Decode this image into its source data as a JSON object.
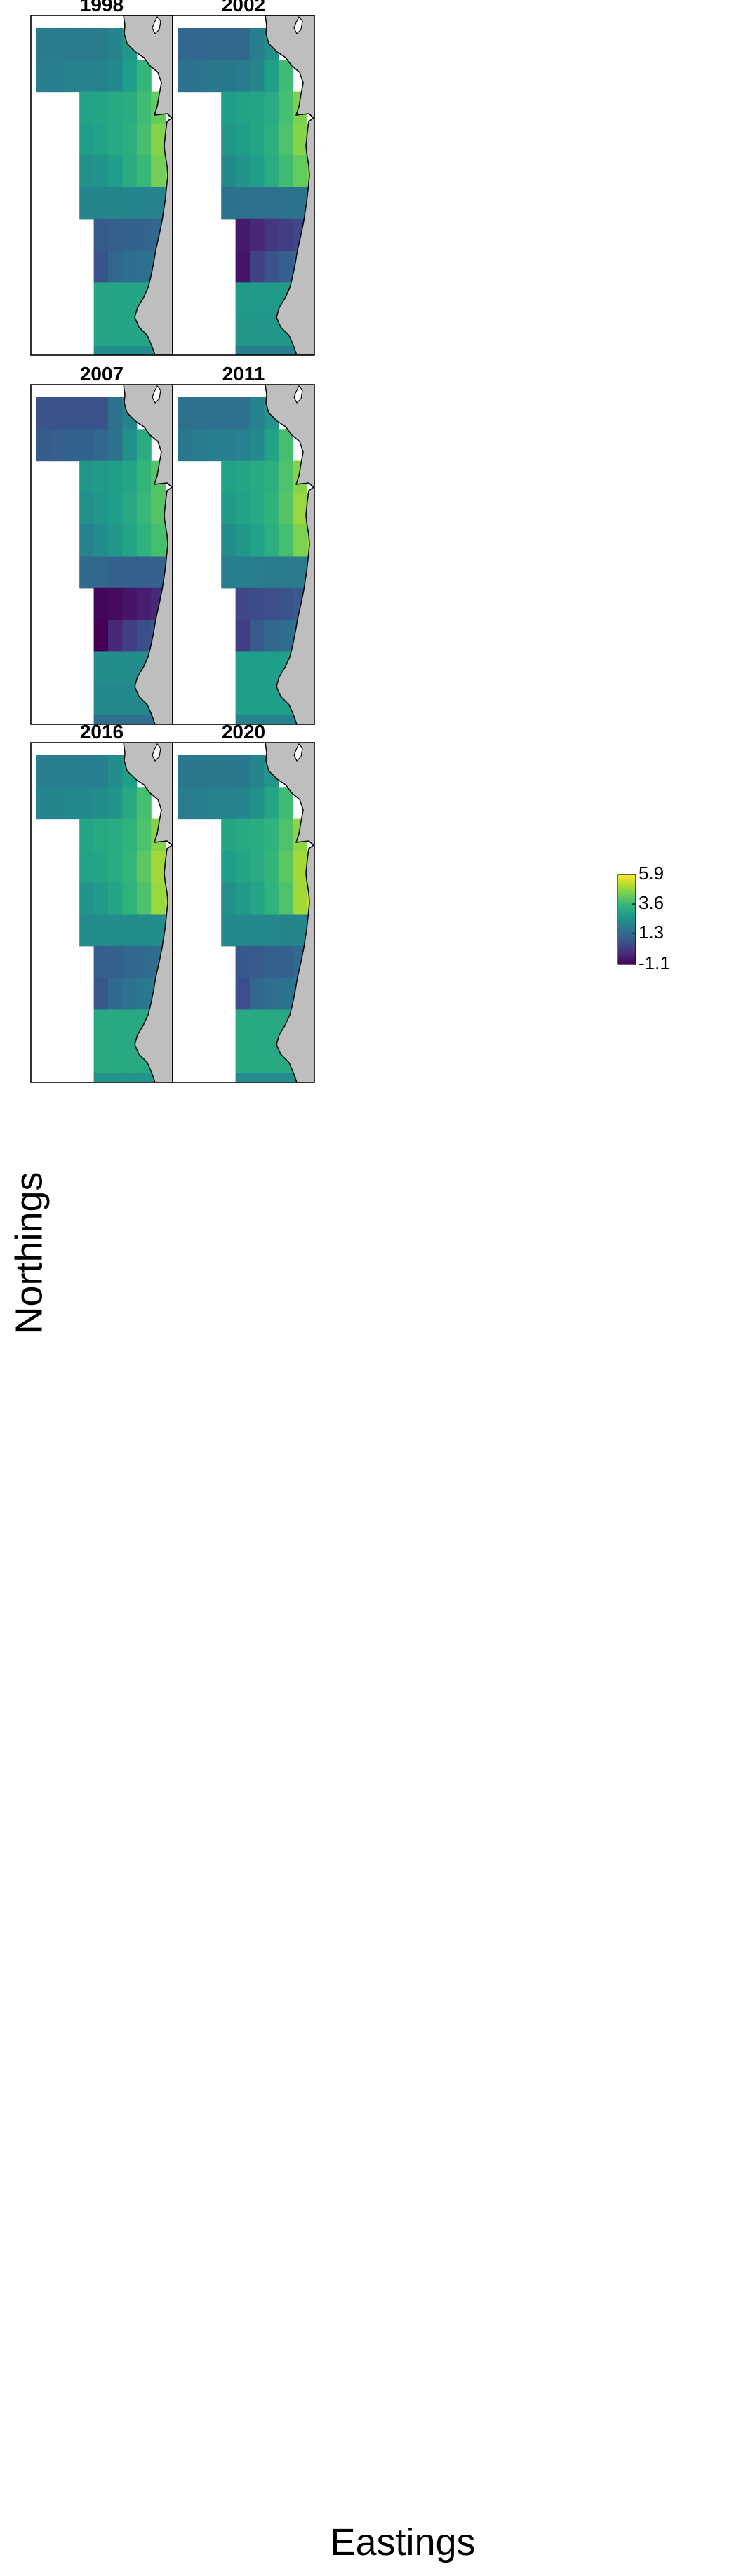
{
  "chart_data": {
    "type": "heatmap",
    "xlabel": "Eastings",
    "ylabel": "Northings",
    "colormap": "viridis",
    "colors": {
      "land": "#bebebe",
      "coast": "#000000",
      "panel_border": "#000000",
      "viridis": [
        "#440154",
        "#482878",
        "#3e4989",
        "#31688e",
        "#26828e",
        "#1f9e89",
        "#35b779",
        "#6ece58",
        "#b5de2b",
        "#fde725"
      ]
    },
    "legend": {
      "placement": "inside bottom-right panel",
      "ticks": [
        5.9,
        3.6,
        1.3,
        -1.1
      ],
      "tick_labels": [
        "5.9",
        "3.6",
        "1.3",
        "-1.1"
      ],
      "range": [
        -1.1,
        5.9
      ]
    },
    "panels": [
      {
        "title": "1998",
        "grid": [
          [
            1.8,
            1.8,
            1.8,
            1.8,
            1.8,
            2.1,
            2.6,
            null,
            null,
            null,
            null
          ],
          [
            1.9,
            1.9,
            2.0,
            2.0,
            2.0,
            2.2,
            2.8,
            3.5,
            null,
            null,
            null
          ],
          [
            null,
            null,
            null,
            2.9,
            3.0,
            3.1,
            3.2,
            3.7,
            4.2,
            null,
            null
          ],
          [
            null,
            null,
            null,
            2.8,
            2.9,
            3.1,
            3.3,
            3.8,
            4.6,
            5.0,
            null
          ],
          [
            null,
            null,
            null,
            2.4,
            2.5,
            2.8,
            3.2,
            3.6,
            4.4,
            4.9,
            5.1
          ],
          [
            null,
            null,
            null,
            2.1,
            2.1,
            2.1,
            2.1,
            2.0,
            2.0,
            2.0,
            2.1
          ],
          [
            null,
            null,
            null,
            null,
            0.9,
            1.0,
            1.1,
            1.1,
            1.2,
            1.4,
            null
          ],
          [
            null,
            null,
            null,
            null,
            0.7,
            1.2,
            1.4,
            1.5,
            1.7,
            1.8,
            null
          ],
          [
            null,
            null,
            null,
            null,
            3.0,
            3.0,
            3.0,
            3.0,
            3.0,
            2.9,
            null
          ],
          [
            null,
            null,
            null,
            null,
            3.0,
            3.0,
            3.0,
            3.0,
            2.9,
            null,
            null
          ],
          [
            null,
            null,
            null,
            null,
            2.3,
            2.3,
            2.3,
            2.3,
            2.3,
            null,
            null
          ]
        ]
      },
      {
        "title": "2002",
        "grid": [
          [
            1.2,
            1.2,
            1.2,
            1.2,
            1.2,
            1.9,
            2.4,
            null,
            null,
            null,
            null
          ],
          [
            1.5,
            1.6,
            1.7,
            1.7,
            1.8,
            2.1,
            2.8,
            3.7,
            null,
            null,
            null
          ],
          [
            null,
            null,
            null,
            2.8,
            2.9,
            3.0,
            3.2,
            3.8,
            4.5,
            null,
            null
          ],
          [
            null,
            null,
            null,
            2.6,
            2.8,
            3.0,
            3.3,
            3.9,
            4.6,
            4.9,
            null
          ],
          [
            null,
            null,
            null,
            2.2,
            2.5,
            2.8,
            3.2,
            3.7,
            4.2,
            4.5,
            4.6
          ],
          [
            null,
            null,
            null,
            1.6,
            1.5,
            1.5,
            1.5,
            1.5,
            1.6,
            1.7,
            1.8
          ],
          [
            null,
            null,
            null,
            null,
            -0.6,
            -0.3,
            0.0,
            0.2,
            0.4,
            0.7,
            null
          ],
          [
            null,
            null,
            null,
            null,
            -0.7,
            0.3,
            0.7,
            1.0,
            1.3,
            1.5,
            null
          ],
          [
            null,
            null,
            null,
            null,
            2.7,
            2.7,
            2.7,
            2.7,
            2.7,
            2.6,
            null
          ],
          [
            null,
            null,
            null,
            null,
            2.6,
            2.6,
            2.6,
            2.6,
            2.6,
            null,
            null
          ],
          [
            null,
            null,
            null,
            null,
            1.9,
            1.9,
            1.9,
            1.9,
            1.9,
            null,
            null
          ]
        ]
      },
      {
        "title": "2007",
        "grid": [
          [
            0.7,
            0.7,
            0.7,
            0.7,
            0.7,
            1.5,
            2.1,
            null,
            null,
            null,
            null
          ],
          [
            0.9,
            1.0,
            1.1,
            1.1,
            1.2,
            1.6,
            2.4,
            3.2,
            null,
            null,
            null
          ],
          [
            null,
            null,
            null,
            2.6,
            2.7,
            2.8,
            3.0,
            3.5,
            4.0,
            null,
            null
          ],
          [
            null,
            null,
            null,
            2.4,
            2.6,
            2.8,
            3.1,
            3.6,
            4.0,
            4.2,
            null
          ],
          [
            null,
            null,
            null,
            2.0,
            2.3,
            2.6,
            3.0,
            3.4,
            3.8,
            4.0,
            4.1
          ],
          [
            null,
            null,
            null,
            1.3,
            1.2,
            1.1,
            1.0,
            1.0,
            1.1,
            1.3,
            1.4
          ],
          [
            null,
            null,
            null,
            null,
            -1.0,
            -0.9,
            -0.7,
            -0.5,
            -0.3,
            -0.1,
            null
          ],
          [
            null,
            null,
            null,
            null,
            -1.1,
            -0.3,
            0.2,
            0.6,
            0.9,
            1.2,
            null
          ],
          [
            null,
            null,
            null,
            null,
            2.3,
            2.3,
            2.3,
            2.3,
            2.3,
            2.3,
            null
          ],
          [
            null,
            null,
            null,
            null,
            2.2,
            2.2,
            2.2,
            2.2,
            2.2,
            null,
            null
          ],
          [
            null,
            null,
            null,
            null,
            1.4,
            1.4,
            1.4,
            1.4,
            1.4,
            null,
            null
          ]
        ]
      },
      {
        "title": "2011",
        "grid": [
          [
            1.5,
            1.5,
            1.5,
            1.5,
            1.5,
            2.0,
            2.5,
            null,
            null,
            null,
            null
          ],
          [
            1.7,
            1.8,
            1.9,
            1.9,
            2.0,
            2.2,
            2.9,
            3.8,
            null,
            null,
            null
          ],
          [
            null,
            null,
            null,
            2.9,
            3.0,
            3.1,
            3.3,
            3.9,
            4.6,
            null,
            null
          ],
          [
            null,
            null,
            null,
            2.7,
            2.9,
            3.1,
            3.4,
            4.0,
            4.8,
            5.1,
            null
          ],
          [
            null,
            null,
            null,
            2.3,
            2.6,
            2.9,
            3.3,
            3.8,
            4.5,
            4.9,
            5.1
          ],
          [
            null,
            null,
            null,
            1.9,
            1.9,
            1.9,
            1.8,
            1.8,
            1.8,
            1.9,
            2.0
          ],
          [
            null,
            null,
            null,
            null,
            0.4,
            0.5,
            0.6,
            0.7,
            0.9,
            1.1,
            null
          ],
          [
            null,
            null,
            null,
            null,
            0.2,
            0.9,
            1.2,
            1.4,
            1.6,
            1.7,
            null
          ],
          [
            null,
            null,
            null,
            null,
            2.8,
            2.8,
            2.8,
            2.8,
            2.8,
            2.7,
            null
          ],
          [
            null,
            null,
            null,
            null,
            2.8,
            2.8,
            2.8,
            2.8,
            2.7,
            null,
            null
          ],
          [
            null,
            null,
            null,
            null,
            2.0,
            2.0,
            2.0,
            2.0,
            2.0,
            null,
            null
          ]
        ]
      },
      {
        "title": "2016",
        "grid": [
          [
            1.9,
            1.9,
            1.9,
            1.9,
            1.9,
            2.3,
            2.8,
            null,
            null,
            null,
            null
          ],
          [
            2.1,
            2.1,
            2.2,
            2.2,
            2.3,
            2.5,
            3.1,
            3.8,
            null,
            null,
            null
          ],
          [
            null,
            null,
            null,
            3.0,
            3.1,
            3.2,
            3.4,
            3.9,
            4.6,
            null,
            null
          ],
          [
            null,
            null,
            null,
            2.9,
            3.0,
            3.2,
            3.5,
            4.1,
            4.9,
            5.3,
            null
          ],
          [
            null,
            null,
            null,
            2.5,
            2.7,
            3.0,
            3.4,
            3.9,
            4.8,
            5.3,
            5.5
          ],
          [
            null,
            null,
            null,
            2.3,
            2.3,
            2.3,
            2.3,
            2.3,
            2.3,
            2.4,
            2.5
          ],
          [
            null,
            null,
            null,
            null,
            1.0,
            1.1,
            1.2,
            1.3,
            1.4,
            1.6,
            null
          ],
          [
            null,
            null,
            null,
            null,
            0.8,
            1.3,
            1.5,
            1.7,
            1.9,
            2.0,
            null
          ],
          [
            null,
            null,
            null,
            null,
            3.1,
            3.1,
            3.1,
            3.1,
            3.1,
            3.0,
            null
          ],
          [
            null,
            null,
            null,
            null,
            3.1,
            3.1,
            3.1,
            3.1,
            3.0,
            null,
            null
          ],
          [
            null,
            null,
            null,
            null,
            2.5,
            2.5,
            2.5,
            2.5,
            2.5,
            null,
            null
          ]
        ]
      },
      {
        "title": "2020",
        "grid": [
          [
            1.7,
            1.7,
            1.7,
            1.7,
            1.7,
            2.1,
            2.6,
            null,
            null,
            null,
            null
          ],
          [
            1.9,
            1.9,
            2.0,
            2.0,
            2.1,
            2.4,
            3.0,
            3.7,
            null,
            null,
            null
          ],
          [
            null,
            null,
            null,
            3.0,
            3.1,
            3.2,
            3.4,
            3.9,
            4.7,
            null,
            null
          ],
          [
            null,
            null,
            null,
            2.8,
            3.0,
            3.2,
            3.5,
            4.1,
            4.9,
            5.3,
            null
          ],
          [
            null,
            null,
            null,
            2.4,
            2.7,
            3.0,
            3.4,
            3.9,
            4.9,
            5.4,
            5.5
          ],
          [
            null,
            null,
            null,
            2.2,
            2.2,
            2.2,
            2.2,
            2.1,
            2.1,
            2.2,
            2.3
          ],
          [
            null,
            null,
            null,
            null,
            0.8,
            0.9,
            1.0,
            1.1,
            1.3,
            1.5,
            null
          ],
          [
            null,
            null,
            null,
            null,
            0.6,
            1.2,
            1.4,
            1.6,
            1.8,
            1.9,
            null
          ],
          [
            null,
            null,
            null,
            null,
            3.1,
            3.1,
            3.1,
            3.1,
            3.1,
            3.0,
            null
          ],
          [
            null,
            null,
            null,
            null,
            3.1,
            3.1,
            3.1,
            3.1,
            3.0,
            null,
            null
          ],
          [
            null,
            null,
            null,
            null,
            2.3,
            2.3,
            2.3,
            2.3,
            2.3,
            null,
            null
          ]
        ]
      }
    ]
  }
}
